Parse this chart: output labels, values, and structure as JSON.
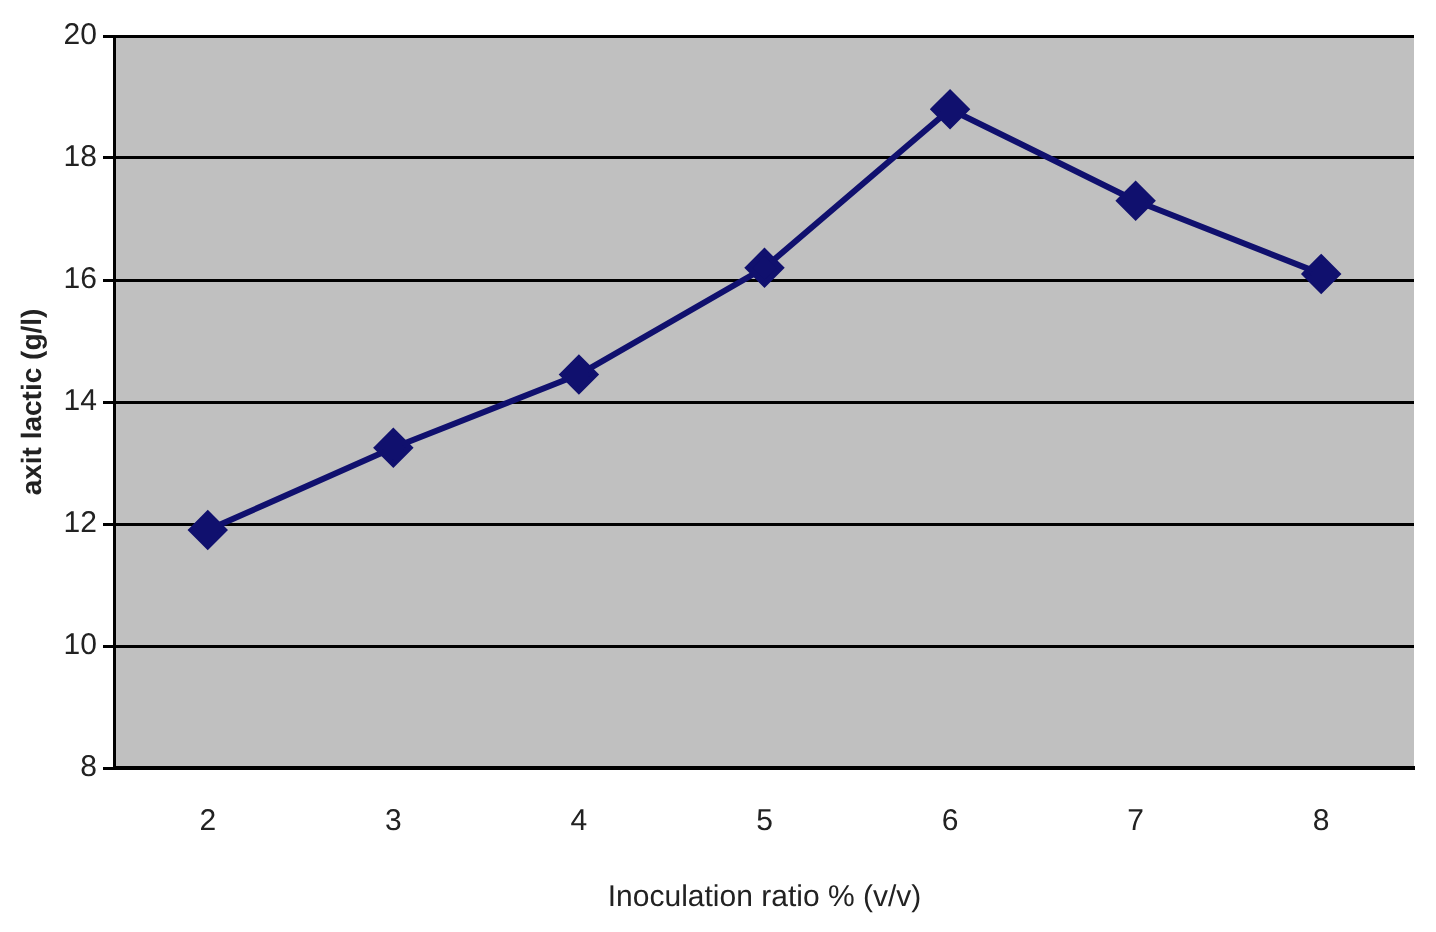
{
  "chart_data": {
    "type": "line",
    "xlabel": "Inoculation ratio % (v/v)",
    "ylabel": "axit lactic (g/l)",
    "categories": [
      "2",
      "3",
      "4",
      "5",
      "6",
      "7",
      "8"
    ],
    "series": [
      {
        "color": "#10106e",
        "values": [
          11.9,
          13.25,
          14.45,
          16.2,
          18.8,
          17.3,
          16.1
        ]
      }
    ],
    "ylim": [
      8,
      20
    ],
    "yticks": [
      8,
      10,
      12,
      14,
      16,
      18,
      20
    ],
    "grid": "y",
    "legend": false,
    "marker": "diamond",
    "line_style": "solid"
  }
}
